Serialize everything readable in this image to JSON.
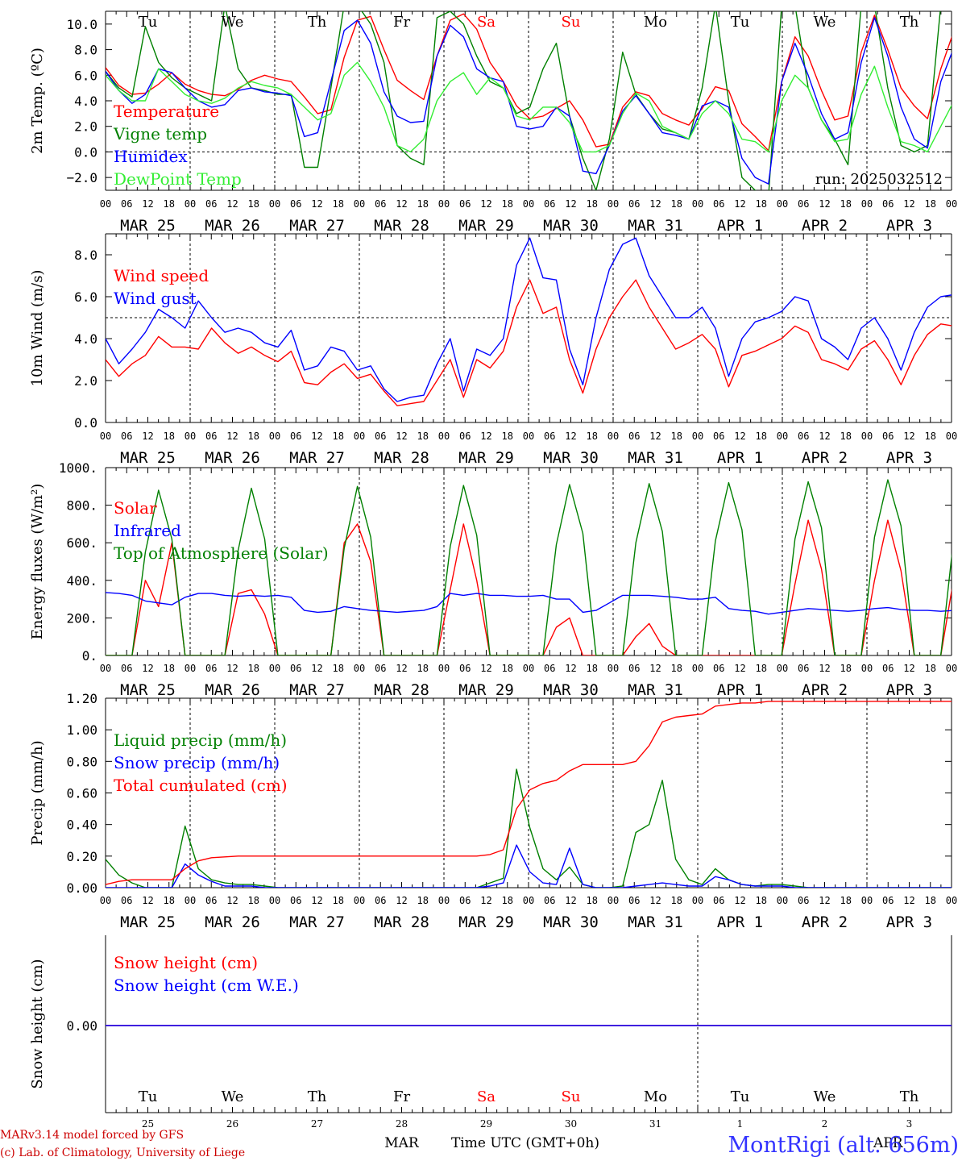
{
  "days_of_week": [
    "Tu",
    "We",
    "Th",
    "Fr",
    "Sa",
    "Su",
    "Mo",
    "Tu",
    "We",
    "Th"
  ],
  "weekend_color": "#ff0000",
  "hour_ticks": [
    "00",
    "06",
    "12",
    "18"
  ],
  "last_hour_tick": "00",
  "date_labels": [
    "MAR 25",
    "MAR 26",
    "MAR 27",
    "MAR 28",
    "MAR 29",
    "MAR 30",
    "MAR 31",
    "APR  1",
    "APR  2",
    "APR  3"
  ],
  "bottom_day_numbers": [
    "25",
    "26",
    "27",
    "28",
    "29",
    "30",
    "31",
    "1",
    "2",
    "3"
  ],
  "month_overlay_labels": [
    "MAR",
    "APR"
  ],
  "xlabel": "Time UTC (GMT+0h)",
  "footer_left": [
    "MARv3.14 model forced by GFS",
    "(c) Lab. of Climatology, University of Liege"
  ],
  "footer_right": "MontRigi (alt. 656m)",
  "colors": {
    "red": "#ff0000",
    "green": "#008000",
    "blue": "#0000ff",
    "lightgreen": "#33ee33",
    "footer_red": "#cc0000",
    "footer_blue": "#3333ff"
  },
  "chart_data": [
    {
      "type": "line",
      "ylabel": "2m Temp. (ºC)",
      "ylim": [
        -3,
        11
      ],
      "yticks": [
        "-2.0",
        "0.0",
        "2.0",
        "4.0",
        "6.0",
        "8.0",
        "10.0"
      ],
      "reference_line": 0,
      "run_label": "run: 2025032512",
      "x_unit": "hours since Mar 25 00 UTC (3-hourly)",
      "series": [
        {
          "name": "Temperature",
          "color": "#ff0000",
          "values": [
            6.6,
            5.2,
            4.5,
            4.6,
            5.3,
            6.2,
            5.3,
            4.8,
            4.5,
            4.4,
            4.9,
            5.6,
            6.0,
            5.7,
            5.5,
            4.3,
            3.0,
            3.3,
            7.4,
            10.3,
            10.6,
            8.0,
            5.6,
            4.8,
            4.1,
            7.5,
            10.3,
            10.8,
            9.6,
            7.0,
            5.5,
            3.6,
            2.6,
            2.8,
            3.4,
            4.0,
            2.5,
            0.4,
            0.6,
            3.5,
            4.7,
            4.4,
            3.0,
            2.5,
            2.1,
            3.4,
            5.1,
            4.8,
            2.2,
            1.2,
            0.1,
            5.5,
            9.0,
            7.5,
            4.8,
            2.5,
            2.8,
            7.8,
            10.7,
            8.0,
            5.0,
            3.6,
            2.6,
            6.5,
            9.5,
            7.8,
            4.8,
            2.5
          ]
        },
        {
          "name": "Vigne temp",
          "color": "#008000",
          "values": [
            6.3,
            5.0,
            4.3,
            9.8,
            7.0,
            5.8,
            5.0,
            4.5,
            4.0,
            11.5,
            6.5,
            5.0,
            4.8,
            4.5,
            4.5,
            -1.2,
            -1.2,
            5.0,
            11.5,
            11.5,
            10.0,
            7.0,
            0.5,
            -0.5,
            -1.0,
            10.5,
            11.0,
            10.0,
            7.5,
            5.5,
            5.0,
            3.0,
            3.5,
            6.5,
            8.5,
            2.8,
            -0.5,
            -3.0,
            1.0,
            7.8,
            4.5,
            3.0,
            1.8,
            1.5,
            1.0,
            5.0,
            11.5,
            4.0,
            -2.0,
            -3.0,
            -3.5,
            11.5,
            11.5,
            5.0,
            2.5,
            1.0,
            -1.0,
            11.5,
            11.5,
            5.0,
            0.5,
            0.0,
            0.5,
            11.5,
            11.5,
            3.0,
            -1.0,
            -2.0
          ]
        },
        {
          "name": "Humidex",
          "color": "#0000ff",
          "values": [
            6.3,
            4.8,
            3.8,
            4.5,
            6.5,
            6.2,
            5.0,
            4.0,
            3.5,
            3.7,
            4.8,
            5.0,
            4.7,
            4.6,
            4.4,
            1.2,
            1.5,
            5.5,
            9.5,
            10.3,
            8.5,
            4.7,
            2.8,
            2.3,
            2.4,
            7.5,
            9.9,
            9.0,
            6.5,
            5.8,
            5.5,
            2.0,
            1.8,
            2.0,
            3.5,
            2.8,
            -1.5,
            -1.7,
            0.5,
            3.2,
            4.4,
            3.0,
            1.5,
            1.3,
            1.0,
            3.6,
            4.0,
            3.5,
            -0.5,
            -2.0,
            -2.5,
            5.5,
            8.5,
            6.0,
            3.0,
            1.0,
            1.5,
            7.0,
            10.5,
            7.5,
            3.5,
            1.0,
            0.3,
            5.5,
            8.2,
            5.5,
            2.5,
            0.0
          ]
        },
        {
          "name": "DewPoint Temp",
          "color": "#33ee33",
          "values": [
            6.0,
            4.8,
            4.0,
            4.0,
            6.5,
            5.5,
            4.5,
            4.0,
            3.8,
            4.2,
            5.0,
            5.5,
            5.2,
            5.0,
            4.5,
            3.5,
            2.5,
            3.0,
            6.0,
            7.0,
            5.5,
            3.5,
            0.5,
            0.0,
            1.0,
            4.0,
            5.5,
            6.2,
            4.5,
            5.8,
            5.0,
            2.8,
            2.5,
            3.5,
            3.5,
            2.3,
            0.0,
            0.0,
            0.5,
            3.0,
            4.6,
            4.0,
            2.0,
            1.5,
            1.0,
            3.0,
            4.0,
            3.0,
            1.0,
            0.8,
            0.0,
            4.0,
            6.0,
            5.0,
            2.5,
            0.8,
            1.0,
            4.5,
            6.7,
            3.5,
            0.8,
            0.5,
            0.0,
            2.0,
            4.0,
            1.0,
            -1.5,
            -1.8
          ]
        }
      ]
    },
    {
      "type": "line",
      "ylabel": "10m Wind (m/s)",
      "ylim": [
        0,
        9
      ],
      "yticks": [
        "0.0",
        "2.0",
        "4.0",
        "6.0",
        "8.0"
      ],
      "reference_line": 5,
      "x_unit": "hours since Mar 25 00 UTC (3-hourly)",
      "series": [
        {
          "name": "Wind speed",
          "color": "#ff0000",
          "values": [
            3.0,
            2.2,
            2.8,
            3.2,
            4.1,
            3.6,
            3.6,
            3.5,
            4.5,
            3.8,
            3.3,
            3.6,
            3.2,
            2.9,
            3.4,
            1.9,
            1.8,
            2.4,
            2.8,
            2.1,
            2.3,
            1.5,
            0.8,
            0.9,
            1.0,
            2.0,
            3.0,
            1.2,
            3.0,
            2.6,
            3.4,
            5.5,
            6.8,
            5.2,
            5.5,
            3.0,
            1.4,
            3.5,
            5.0,
            6.0,
            6.8,
            5.5,
            4.5,
            3.5,
            3.8,
            4.2,
            3.5,
            1.7,
            3.2,
            3.4,
            3.7,
            4.0,
            4.6,
            4.3,
            3.0,
            2.8,
            2.5,
            3.5,
            3.9,
            3.0,
            1.8,
            3.2,
            4.2,
            4.7,
            4.6,
            4.2,
            3.7,
            3.5
          ]
        },
        {
          "name": "Wind gust",
          "color": "#0000ff",
          "values": [
            4.0,
            2.8,
            3.5,
            4.3,
            5.4,
            5.0,
            4.5,
            5.8,
            5.0,
            4.3,
            4.5,
            4.3,
            3.8,
            3.6,
            4.4,
            2.5,
            2.7,
            3.6,
            3.4,
            2.5,
            2.7,
            1.6,
            1.0,
            1.2,
            1.3,
            2.8,
            4.0,
            1.5,
            3.5,
            3.2,
            4.0,
            7.5,
            8.8,
            6.9,
            6.8,
            3.5,
            1.8,
            5.0,
            7.3,
            8.5,
            8.8,
            7.0,
            6.0,
            5.0,
            5.0,
            5.5,
            4.5,
            2.2,
            4.0,
            4.8,
            5.0,
            5.3,
            6.0,
            5.8,
            4.0,
            3.6,
            3.0,
            4.5,
            5.0,
            4.0,
            2.5,
            4.3,
            5.5,
            6.0,
            6.1,
            5.6,
            5.3,
            4.6
          ]
        }
      ]
    },
    {
      "type": "line",
      "ylabel": "Energy fluxes (W/m²)",
      "ylim": [
        0,
        1000
      ],
      "yticks": [
        "0.",
        "200.",
        "400.",
        "600.",
        "800.",
        "1000."
      ],
      "x_unit": "hours since Mar 25 00 UTC (3-hourly)",
      "series": [
        {
          "name": "Solar",
          "color": "#ff0000",
          "values": [
            0,
            0,
            0,
            400,
            260,
            600,
            0,
            0,
            0,
            0,
            330,
            350,
            220,
            0,
            0,
            0,
            0,
            0,
            600,
            700,
            500,
            0,
            0,
            0,
            0,
            0,
            350,
            700,
            400,
            0,
            0,
            0,
            0,
            0,
            150,
            200,
            0,
            0,
            0,
            0,
            100,
            170,
            50,
            0,
            0,
            0,
            0,
            0,
            0,
            0,
            0,
            0,
            380,
            720,
            460,
            0,
            0,
            0,
            400,
            720,
            450,
            0,
            0,
            0,
            420,
            750,
            470,
            0
          ]
        },
        {
          "name": "Infrared",
          "color": "#0000ff",
          "values": [
            335,
            330,
            320,
            290,
            280,
            270,
            310,
            330,
            330,
            320,
            315,
            320,
            315,
            320,
            310,
            240,
            230,
            235,
            260,
            250,
            240,
            235,
            230,
            235,
            240,
            260,
            330,
            320,
            330,
            320,
            320,
            315,
            315,
            320,
            300,
            300,
            230,
            240,
            280,
            320,
            320,
            320,
            315,
            310,
            300,
            300,
            310,
            250,
            240,
            235,
            220,
            230,
            240,
            250,
            245,
            240,
            235,
            240,
            250,
            255,
            245,
            240,
            240,
            235,
            240,
            240,
            230,
            220
          ]
        },
        {
          "name": "Top of Atmosphere (Solar)",
          "color": "#008000",
          "values": [
            0,
            0,
            0,
            550,
            880,
            620,
            0,
            0,
            0,
            0,
            560,
            890,
            620,
            0,
            0,
            0,
            0,
            0,
            570,
            900,
            630,
            0,
            0,
            0,
            0,
            0,
            580,
            905,
            640,
            0,
            0,
            0,
            0,
            0,
            590,
            910,
            650,
            0,
            0,
            0,
            600,
            915,
            660,
            0,
            0,
            0,
            610,
            920,
            670,
            0,
            0,
            0,
            620,
            925,
            680,
            0,
            0,
            0,
            630,
            935,
            690,
            0,
            0,
            0,
            640,
            940,
            700,
            0
          ]
        }
      ]
    },
    {
      "type": "line",
      "ylabel": "Precip (mm/h)",
      "ylim": [
        0,
        1.2
      ],
      "yticks": [
        "0.00",
        "0.20",
        "0.40",
        "0.60",
        "0.80",
        "1.00",
        "1.20"
      ],
      "x_unit": "hours since Mar 25 00 UTC (3-hourly)",
      "series": [
        {
          "name": "Liquid precip (mm/h)",
          "color": "#008000",
          "values": [
            0.18,
            0.08,
            0.03,
            0,
            0,
            0,
            0.39,
            0.12,
            0.05,
            0.03,
            0.02,
            0.02,
            0.01,
            0,
            0,
            0,
            0,
            0,
            0,
            0,
            0,
            0,
            0,
            0,
            0,
            0,
            0,
            0,
            0,
            0.03,
            0.06,
            0.75,
            0.38,
            0.12,
            0.05,
            0.13,
            0.02,
            0,
            0,
            0.01,
            0.35,
            0.4,
            0.68,
            0.18,
            0.05,
            0.02,
            0.12,
            0.05,
            0.02,
            0.01,
            0.02,
            0.02,
            0.01,
            0,
            0,
            0,
            0,
            0,
            0,
            0,
            0,
            0,
            0,
            0,
            0,
            0,
            0,
            0
          ]
        },
        {
          "name": "Snow precip (mm/h)",
          "color": "#0000ff",
          "values": [
            0,
            0,
            0,
            0,
            0,
            0,
            0.15,
            0.08,
            0.04,
            0.01,
            0.01,
            0.01,
            0,
            0,
            0,
            0,
            0,
            0,
            0,
            0,
            0,
            0,
            0,
            0,
            0,
            0,
            0,
            0,
            0,
            0.01,
            0.03,
            0.27,
            0.1,
            0.03,
            0.02,
            0.25,
            0.02,
            0,
            0,
            0,
            0.01,
            0.02,
            0.03,
            0.02,
            0.01,
            0.01,
            0.07,
            0.05,
            0.02,
            0.01,
            0.01,
            0.01,
            0,
            0,
            0,
            0,
            0,
            0,
            0,
            0,
            0,
            0,
            0,
            0,
            0,
            0,
            0,
            0
          ]
        },
        {
          "name": "Total cumulated (cm)",
          "color": "#ff0000",
          "values": [
            0.02,
            0.04,
            0.05,
            0.05,
            0.05,
            0.05,
            0.12,
            0.17,
            0.19,
            0.195,
            0.2,
            0.2,
            0.2,
            0.2,
            0.2,
            0.2,
            0.2,
            0.2,
            0.2,
            0.2,
            0.2,
            0.2,
            0.2,
            0.2,
            0.2,
            0.2,
            0.2,
            0.2,
            0.2,
            0.21,
            0.24,
            0.5,
            0.62,
            0.66,
            0.68,
            0.74,
            0.78,
            0.78,
            0.78,
            0.78,
            0.8,
            0.9,
            1.05,
            1.08,
            1.09,
            1.1,
            1.15,
            1.16,
            1.17,
            1.17,
            1.18,
            1.18,
            1.18,
            1.18,
            1.18,
            1.18,
            1.18,
            1.18,
            1.18,
            1.18,
            1.18,
            1.18,
            1.18,
            1.18,
            1.18,
            1.18,
            1.18,
            1.18
          ]
        }
      ]
    },
    {
      "type": "line",
      "ylabel": "Snow height (cm)",
      "yticks": [
        "0.00"
      ],
      "x_unit": "hours since Mar 25 00 UTC",
      "series": [
        {
          "name": "Snow height (cm)",
          "color": "#ff0000",
          "values": [
            0,
            0
          ]
        },
        {
          "name": "Snow height (cm W.E.)",
          "color": "#0000ff",
          "values": [
            0,
            0
          ]
        }
      ]
    }
  ]
}
